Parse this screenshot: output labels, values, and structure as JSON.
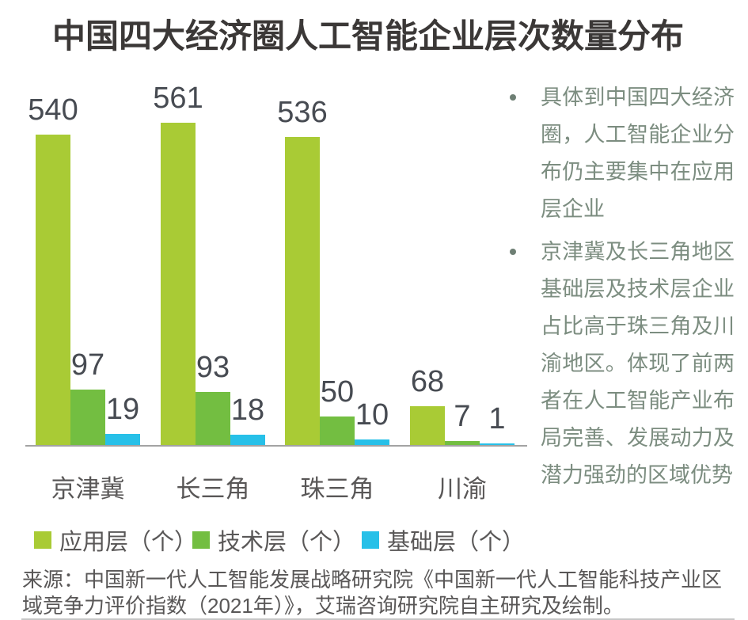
{
  "title": "中国四大经济圈人工智能企业层次数量分布",
  "chart_data": {
    "type": "bar",
    "categories": [
      "京津冀",
      "长三角",
      "珠三角",
      "川渝"
    ],
    "series": [
      {
        "name": "应用层（个）",
        "color": "#A9CB35",
        "values": [
          540,
          561,
          536,
          68
        ]
      },
      {
        "name": "技术层（个）",
        "color": "#73BE41",
        "values": [
          97,
          93,
          50,
          7
        ]
      },
      {
        "name": "基础层（个）",
        "color": "#27C0E8",
        "values": [
          19,
          18,
          10,
          1
        ]
      }
    ],
    "title": "中国四大经济圈人工智能企业层次数量分布",
    "xlabel": "",
    "ylabel": "",
    "ylim": [
      0,
      600
    ],
    "grid": false,
    "legend_position": "bottom",
    "value_labels": true,
    "axis_color": "#A3A3A3"
  },
  "sidebar": {
    "bullets": [
      {
        "text": "具体到中国四大经济圈，人工智能企业分布仍主要集中在应用层企业"
      },
      {
        "text": "京津冀及长三角地区基础层及技术层企业占比高于珠三角及川渝地区。体现了前两者在人工智能产业布局完善、发展动力及潜力强劲的区域优势"
      }
    ]
  },
  "source": "来源：中国新一代人工智能发展战略研究院《中国新一代人工智能科技产业区域竞争力评价指数（2021年）》，艾瑞咨询研究院自主研究及绘制。",
  "colors": {
    "title": "#3B3837",
    "value_label": "#474B52",
    "category_label": "#595757",
    "legend_label": "#595757",
    "bullet_text": "#7C8D80",
    "source_text": "#595757"
  }
}
